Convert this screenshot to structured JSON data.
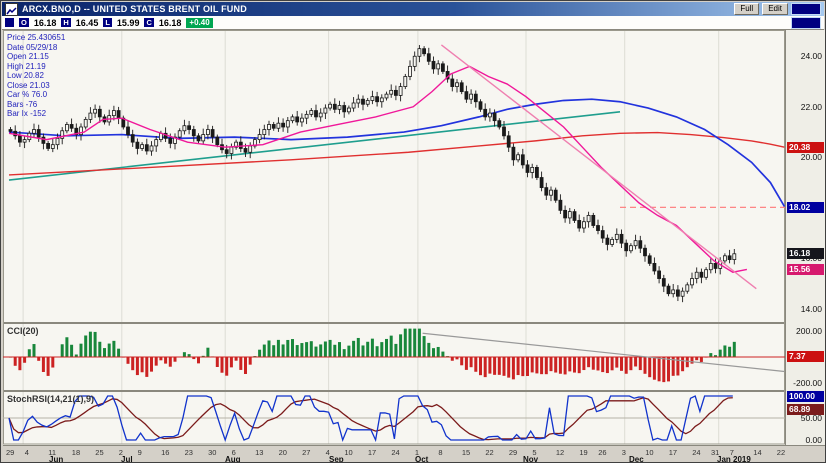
{
  "window": {
    "title": "ARCX.BNO,D -- UNITED STATES BRENT OIL FUND",
    "buttons": [
      "Full",
      "Edit"
    ]
  },
  "quote_bar": {
    "fields": [
      {
        "label": "O",
        "value": "16.18"
      },
      {
        "label": "H",
        "value": "16.45"
      },
      {
        "label": "L",
        "value": "15.99"
      },
      {
        "label": "C",
        "value": "16.18"
      }
    ],
    "change": "+0.40",
    "change_color": "#00a651"
  },
  "info_panel": {
    "lines": [
      "Price 25.430651",
      "Date 05/29/18",
      "Open 21.15",
      "High 21.19",
      "Low 20.82",
      "Close 21.03",
      "Car % 76.0",
      "Bars -76",
      "Bar Ix -152"
    ]
  },
  "chart_data": {
    "type": "candlestick",
    "symbol": "ARCX.BNO",
    "period": "D",
    "title": "UNITED STATES BRENT OIL FUND",
    "ylim": [
      13.5,
      25.0
    ],
    "closes": [
      21.03,
      20.85,
      20.6,
      20.7,
      20.95,
      21.1,
      20.8,
      20.55,
      20.35,
      20.5,
      20.75,
      21.05,
      21.3,
      21.15,
      20.9,
      21.2,
      21.5,
      21.75,
      21.9,
      21.6,
      21.4,
      21.65,
      21.85,
      21.55,
      21.2,
      20.9,
      20.6,
      20.35,
      20.5,
      20.25,
      20.45,
      20.7,
      20.95,
      20.75,
      20.55,
      20.8,
      21.05,
      21.25,
      21.1,
      20.85,
      20.65,
      20.9,
      21.1,
      20.8,
      20.5,
      20.3,
      20.15,
      20.4,
      20.6,
      20.35,
      20.2,
      20.45,
      20.7,
      20.9,
      21.1,
      21.3,
      21.15,
      21.35,
      21.2,
      21.45,
      21.6,
      21.4,
      21.55,
      21.7,
      21.85,
      21.6,
      21.75,
      21.95,
      22.1,
      21.9,
      22.05,
      21.8,
      21.95,
      22.15,
      22.3,
      22.1,
      22.25,
      22.4,
      22.2,
      22.35,
      22.5,
      22.65,
      22.45,
      22.8,
      23.2,
      23.6,
      24.0,
      24.3,
      24.1,
      23.8,
      23.5,
      23.7,
      23.4,
      23.1,
      22.8,
      22.95,
      22.6,
      22.3,
      22.5,
      22.2,
      21.9,
      21.6,
      21.75,
      21.45,
      21.2,
      20.85,
      20.4,
      19.9,
      20.1,
      19.7,
      19.4,
      19.6,
      19.2,
      18.8,
      18.5,
      18.7,
      18.3,
      17.9,
      17.6,
      17.85,
      17.5,
      17.2,
      17.45,
      17.7,
      17.3,
      17.1,
      16.8,
      16.55,
      16.75,
      16.95,
      16.6,
      16.3,
      16.5,
      16.7,
      16.4,
      16.1,
      15.8,
      15.5,
      15.2,
      14.9,
      14.6,
      14.75,
      14.5,
      14.7,
      14.95,
      15.2,
      15.45,
      15.25,
      15.55,
      15.8,
      15.6,
      15.9,
      16.1,
      15.95,
      16.18
    ],
    "month_start_idx": [
      3,
      24,
      46,
      68,
      87,
      110,
      131,
      151
    ],
    "overlays": {
      "ma_red": {
        "color": "#e03030",
        "last_label": "20.38",
        "points": [
          [
            0,
            19.3
          ],
          [
            30,
            19.6
          ],
          [
            60,
            19.9
          ],
          [
            85,
            20.2
          ],
          [
            100,
            20.45
          ],
          [
            112,
            20.65
          ],
          [
            122,
            20.85
          ],
          [
            130,
            20.95
          ],
          [
            138,
            20.98
          ],
          [
            145,
            20.9
          ],
          [
            152,
            20.78
          ],
          [
            158,
            20.65
          ],
          [
            162,
            20.52
          ],
          [
            165,
            20.4
          ]
        ]
      },
      "ma_blue": {
        "color": "#2233dd",
        "last_label": "18.02",
        "points": [
          [
            0,
            21.0
          ],
          [
            12,
            20.85
          ],
          [
            24,
            20.9
          ],
          [
            36,
            20.75
          ],
          [
            48,
            20.8
          ],
          [
            60,
            20.7
          ],
          [
            72,
            20.8
          ],
          [
            84,
            21.0
          ],
          [
            92,
            21.25
          ],
          [
            100,
            21.6
          ],
          [
            106,
            21.9
          ],
          [
            112,
            22.1
          ],
          [
            118,
            22.25
          ],
          [
            124,
            22.3
          ],
          [
            130,
            22.2
          ],
          [
            136,
            21.95
          ],
          [
            142,
            21.6
          ],
          [
            148,
            21.1
          ],
          [
            153,
            20.5
          ],
          [
            158,
            19.8
          ],
          [
            162,
            19.0
          ],
          [
            165,
            18.05
          ]
        ]
      },
      "ema_pink": {
        "color": "#f0189a",
        "last_label": "15.56",
        "points": [
          [
            0,
            20.95
          ],
          [
            8,
            20.7
          ],
          [
            16,
            21.0
          ],
          [
            20,
            21.5
          ],
          [
            24,
            21.55
          ],
          [
            30,
            21.1
          ],
          [
            38,
            20.6
          ],
          [
            46,
            20.4
          ],
          [
            54,
            20.5
          ],
          [
            62,
            21.0
          ],
          [
            70,
            21.3
          ],
          [
            78,
            21.6
          ],
          [
            86,
            22.0
          ],
          [
            90,
            22.6
          ],
          [
            94,
            23.3
          ],
          [
            98,
            23.6
          ],
          [
            102,
            23.2
          ],
          [
            106,
            22.9
          ],
          [
            110,
            22.4
          ],
          [
            114,
            21.8
          ],
          [
            118,
            21.2
          ],
          [
            122,
            20.4
          ],
          [
            126,
            19.6
          ],
          [
            130,
            18.9
          ],
          [
            134,
            18.2
          ],
          [
            138,
            17.7
          ],
          [
            142,
            17.3
          ],
          [
            146,
            16.6
          ],
          [
            150,
            15.9
          ],
          [
            154,
            15.45
          ],
          [
            157,
            15.56
          ]
        ]
      },
      "trendline_teal": {
        "color": "#1f9e8e",
        "points": [
          [
            0,
            19.1
          ],
          [
            130,
            21.8
          ]
        ]
      },
      "trendline_pink": {
        "color": "#ef7fb0",
        "points": [
          [
            92,
            24.45
          ],
          [
            159,
            14.8
          ]
        ]
      },
      "dashed_level": {
        "color": "#ff7777",
        "price": 18.02,
        "from_idx": 130
      }
    },
    "last_price_label": "16.18",
    "y_ticks": [
      {
        "t": "24.00",
        "pane": "price",
        "v": 24
      },
      {
        "t": "22.00",
        "pane": "price",
        "v": 22
      },
      {
        "t": "20.00",
        "pane": "price",
        "v": 20
      },
      {
        "t": "18.00",
        "pane": "price",
        "v": 18
      },
      {
        "t": "16.00",
        "pane": "price",
        "v": 16
      },
      {
        "t": "14.00",
        "pane": "price",
        "v": 14
      },
      {
        "t": "200.00",
        "pane": "cci",
        "v": 200
      },
      {
        "t": "-200.00",
        "pane": "cci",
        "v": -200
      },
      {
        "t": "50.00",
        "pane": "stoch",
        "v": 50
      },
      {
        "t": "0.00",
        "pane": "stoch",
        "v": 0
      }
    ],
    "y_tags": [
      {
        "t": "20.38",
        "pane": "price",
        "v": 20.38,
        "bg": "#cc1111"
      },
      {
        "t": "18.02",
        "pane": "price",
        "v": 18.02,
        "bg": "#0000a0"
      },
      {
        "t": "16.18",
        "pane": "price",
        "v": 16.18,
        "bg": "#15151c"
      },
      {
        "t": "15.56",
        "pane": "price",
        "v": 15.56,
        "bg": "#d6196e"
      },
      {
        "t": "7.37",
        "pane": "cci",
        "v": 7.37,
        "bg": "#cc1111"
      },
      {
        "t": "100.00",
        "pane": "stoch",
        "v": 100,
        "bg": "#0000a0"
      },
      {
        "t": "68.89",
        "pane": "stoch",
        "v": 68.89,
        "bg": "#7b1b1b"
      }
    ],
    "indicators": [
      {
        "name": "CCI(20)",
        "ticks": [
          "200.00",
          "-200.00"
        ],
        "last_value_label": "7.37",
        "trendline": [
          [
            88,
            180
          ],
          [
            165,
            -110
          ]
        ]
      },
      {
        "name": "StochRSI(14,21(1),9)",
        "ticks": [
          "50.00",
          "0.00"
        ],
        "line_labels": {
          "stochrsi": "100.00",
          "signal": "68.89"
        }
      }
    ],
    "x_axis": {
      "day_ticks": [
        [
          "29",
          0
        ],
        [
          "4",
          4
        ],
        [
          "11",
          9
        ],
        [
          "18",
          14
        ],
        [
          "25",
          19
        ],
        [
          "2",
          24
        ],
        [
          "9",
          28
        ],
        [
          "16",
          33
        ],
        [
          "23",
          38
        ],
        [
          "30",
          43
        ],
        [
          "6",
          48
        ],
        [
          "13",
          53
        ],
        [
          "20",
          58
        ],
        [
          "27",
          63
        ],
        [
          "4",
          68
        ],
        [
          "10",
          72
        ],
        [
          "17",
          77
        ],
        [
          "24",
          82
        ],
        [
          "1",
          87
        ],
        [
          "8",
          92
        ],
        [
          "15",
          97
        ],
        [
          "22",
          102
        ],
        [
          "29",
          107
        ],
        [
          "5",
          112
        ],
        [
          "12",
          117
        ],
        [
          "19",
          122
        ],
        [
          "26",
          126
        ],
        [
          "3",
          131
        ],
        [
          "10",
          136
        ],
        [
          "17",
          141
        ],
        [
          "24",
          146
        ],
        [
          "31",
          150
        ],
        [
          "7",
          154
        ],
        [
          "14",
          159
        ],
        [
          "22",
          164
        ]
      ],
      "months": [
        [
          "Jun",
          46
        ],
        [
          "Jul",
          118
        ],
        [
          "Aug",
          222
        ],
        [
          "Sep",
          326
        ],
        [
          "Oct",
          412
        ],
        [
          "Nov",
          520
        ],
        [
          "Dec",
          626
        ],
        [
          "Jan 2019",
          714
        ]
      ]
    }
  }
}
